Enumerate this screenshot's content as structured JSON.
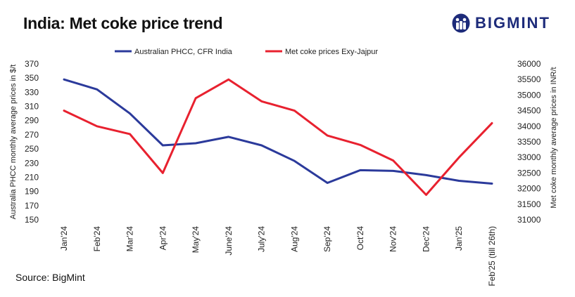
{
  "header": {
    "title": "India: Met coke price trend",
    "brand": "BIGMINT"
  },
  "footer": {
    "source": "Source: BigMint"
  },
  "colors": {
    "series1": "#2b3a9b",
    "series2": "#e8212f",
    "brand": "#1d2b7a"
  },
  "chart_data": {
    "type": "line",
    "categories": [
      "Jan'24",
      "Feb'24",
      "Mar'24",
      "Apr'24",
      "May'24",
      "June'24",
      "July'24",
      "Aug'24",
      "Sep'24",
      "Oct'24",
      "Nov'24",
      "Dec'24",
      "Jan'25",
      "Feb'25 (till 26th)"
    ],
    "series": [
      {
        "name": "Australian PHCC, CFR India",
        "axis": "left",
        "values": [
          348,
          334,
          300,
          255,
          258,
          267,
          255,
          233,
          202,
          220,
          219,
          213,
          205,
          201
        ]
      },
      {
        "name": "Met coke prices Exy-Jajpur",
        "axis": "right",
        "values": [
          34500,
          34000,
          33750,
          32500,
          34900,
          35500,
          34800,
          34500,
          33700,
          33400,
          32900,
          31800,
          33000,
          34100
        ]
      }
    ],
    "ylabel_left": "Australia PHCC monthly average prices in $/t",
    "ylabel_right": "Met coke monthly average prices in INR/t",
    "ylim_left": [
      150,
      370
    ],
    "yticks_left": [
      150,
      170,
      190,
      210,
      230,
      250,
      270,
      290,
      310,
      330,
      350,
      370
    ],
    "ylim_right": [
      31000,
      36000
    ],
    "yticks_right": [
      31000,
      31500,
      32000,
      32500,
      33000,
      33500,
      34000,
      34500,
      35000,
      35500,
      36000
    ],
    "grid": false,
    "legend_position": "top"
  }
}
